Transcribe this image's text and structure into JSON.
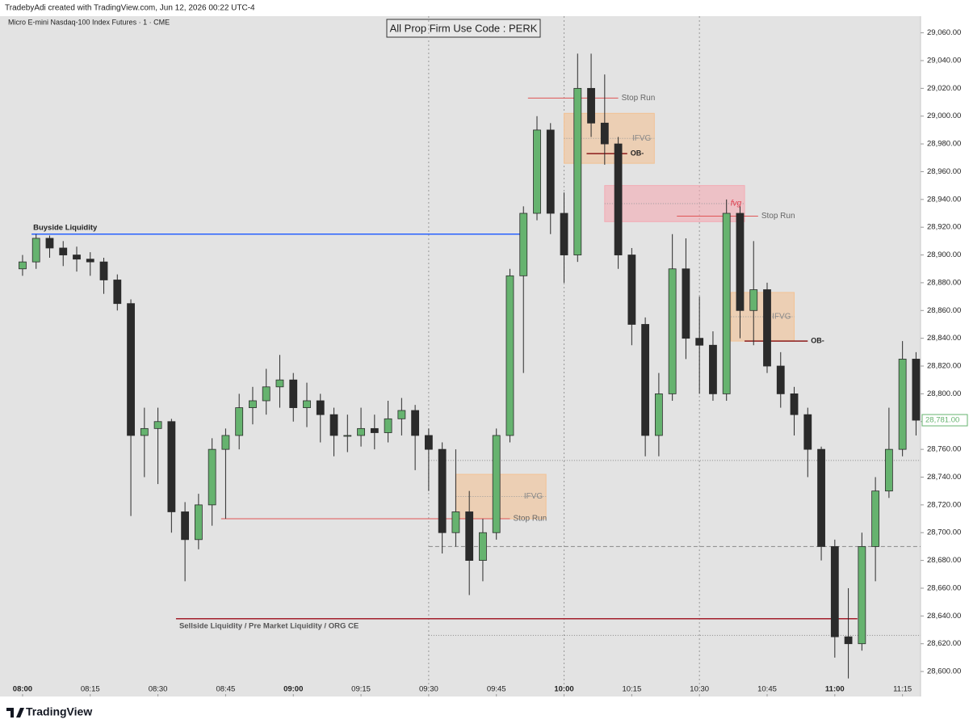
{
  "header": {
    "credit": "TradebyAdi created with TradingView.com, Jun 12, 2026 00:22 UTC-4",
    "symbol": "Micro E-mini Nasdaq-100 Index Futures · 1 · CME",
    "logo": "TradingView"
  },
  "chart_data": {
    "type": "candlestick",
    "title": "All Prop Firm Use Code : PERK",
    "x": [
      "08:00",
      "08:03",
      "08:06",
      "08:09",
      "08:12",
      "08:15",
      "08:18",
      "08:21",
      "08:24",
      "08:27",
      "08:30",
      "08:33",
      "08:36",
      "08:39",
      "08:42",
      "08:45",
      "08:48",
      "08:51",
      "08:54",
      "08:57",
      "09:00",
      "09:03",
      "09:06",
      "09:09",
      "09:12",
      "09:15",
      "09:18",
      "09:21",
      "09:24",
      "09:27",
      "09:30",
      "09:33",
      "09:36",
      "09:39",
      "09:42",
      "09:45",
      "09:48",
      "09:51",
      "09:54",
      "09:57",
      "10:00",
      "10:03",
      "10:06",
      "10:09",
      "10:12",
      "10:15",
      "10:18",
      "10:21",
      "10:24",
      "10:27",
      "10:30",
      "10:33",
      "10:36",
      "10:39",
      "10:42",
      "10:45",
      "10:48",
      "10:51",
      "10:54",
      "10:57",
      "11:00",
      "11:03",
      "11:06",
      "11:09",
      "11:12",
      "11:15",
      "11:18"
    ],
    "open": [
      28890,
      28895,
      28912,
      28905,
      28900,
      28897,
      28895,
      28882,
      28865,
      28770,
      28775,
      28780,
      28715,
      28695,
      28720,
      28760,
      28770,
      28790,
      28795,
      28805,
      28810,
      28790,
      28795,
      28785,
      28770,
      28770,
      28775,
      28772,
      28782,
      28788,
      28770,
      28760,
      28700,
      28715,
      28680,
      28700,
      28770,
      28885,
      28930,
      28990,
      28930,
      28900,
      29020,
      28995,
      28980,
      28900,
      28850,
      28770,
      28800,
      28890,
      28840,
      28835,
      28800,
      28930,
      28860,
      28875,
      28820,
      28800,
      28785,
      28760,
      28690,
      28625,
      28620,
      28690,
      28730,
      28760,
      28825
    ],
    "high": [
      28900,
      28915,
      28914,
      28910,
      28906,
      28902,
      28898,
      28886,
      28868,
      28790,
      28790,
      28782,
      28722,
      28728,
      28768,
      28775,
      28800,
      28805,
      28818,
      28828,
      28815,
      28808,
      28800,
      28790,
      28785,
      28790,
      28785,
      28795,
      28797,
      28792,
      28775,
      28765,
      28760,
      28730,
      28710,
      28775,
      28890,
      28935,
      29000,
      28995,
      28945,
      29045,
      29045,
      29030,
      28985,
      28905,
      28855,
      28815,
      28915,
      28912,
      28870,
      28845,
      28940,
      28935,
      28910,
      28880,
      28830,
      28805,
      28790,
      28762,
      28695,
      28660,
      28700,
      28740,
      28790,
      28838,
      28830
    ],
    "low": [
      28885,
      28890,
      28898,
      28892,
      28888,
      28885,
      28872,
      28860,
      28712,
      28740,
      28735,
      28700,
      28665,
      28688,
      28705,
      28710,
      28760,
      28778,
      28785,
      28790,
      28780,
      28776,
      28765,
      28755,
      28758,
      28762,
      28760,
      28765,
      28770,
      28745,
      28730,
      28685,
      28690,
      28655,
      28665,
      28695,
      28765,
      28815,
      28925,
      28915,
      28880,
      28895,
      28985,
      28965,
      28890,
      28835,
      28755,
      28755,
      28795,
      28825,
      28800,
      28795,
      28795,
      28840,
      28835,
      28815,
      28790,
      28770,
      28740,
      28680,
      28610,
      28595,
      28615,
      28665,
      28725,
      28755,
      28770
    ],
    "close": [
      28895,
      28912,
      28905,
      28900,
      28897,
      28895,
      28882,
      28865,
      28770,
      28775,
      28780,
      28715,
      28695,
      28720,
      28760,
      28770,
      28790,
      28795,
      28805,
      28810,
      28790,
      28795,
      28785,
      28770,
      28770,
      28775,
      28772,
      28782,
      28788,
      28770,
      28760,
      28700,
      28715,
      28680,
      28700,
      28770,
      28885,
      28930,
      28990,
      28930,
      28900,
      29020,
      28995,
      28980,
      28900,
      28850,
      28770,
      28800,
      28890,
      28840,
      28835,
      28800,
      28930,
      28860,
      28875,
      28820,
      28800,
      28785,
      28760,
      28690,
      28625,
      28620,
      28690,
      28730,
      28760,
      28825,
      28781
    ],
    "up_color": "#66b36f",
    "down_color": "#2b2b2b",
    "xlim": [
      "07:55",
      "11:19"
    ],
    "xticks": [
      "08:00",
      "08:15",
      "08:30",
      "08:45",
      "09:00",
      "09:15",
      "09:30",
      "09:45",
      "10:00",
      "10:15",
      "10:30",
      "10:45",
      "11:00",
      "11:15"
    ],
    "ylim": [
      28582,
      29072
    ],
    "yticks": [
      {
        "value": 28600,
        "label": "28,600.00"
      },
      {
        "value": 28620,
        "label": "28,620.00"
      },
      {
        "value": 28640,
        "label": "28,640.00"
      },
      {
        "value": 28660,
        "label": "28,660.00"
      },
      {
        "value": 28680,
        "label": "28,680.00"
      },
      {
        "value": 28700,
        "label": "28,700.00"
      },
      {
        "value": 28720,
        "label": "28,720.00"
      },
      {
        "value": 28740,
        "label": "28,740.00"
      },
      {
        "value": 28760,
        "label": "28,760.00"
      },
      {
        "value": 28780,
        "label": "28,780.00"
      },
      {
        "value": 28800,
        "label": "28,800.00"
      },
      {
        "value": 28820,
        "label": "28,820.00"
      },
      {
        "value": 28840,
        "label": "28,840.00"
      },
      {
        "value": 28860,
        "label": "28,860.00"
      },
      {
        "value": 28880,
        "label": "28,880.00"
      },
      {
        "value": 28900,
        "label": "28,900.00"
      },
      {
        "value": 28920,
        "label": "28,920.00"
      },
      {
        "value": 28940,
        "label": "28,940.00"
      },
      {
        "value": 28960,
        "label": "28,960.00"
      },
      {
        "value": 28980,
        "label": "28,980.00"
      },
      {
        "value": 29000,
        "label": "29,000.00"
      },
      {
        "value": 29020,
        "label": "29,020.00"
      },
      {
        "value": 29040,
        "label": "29,040.00"
      },
      {
        "value": 29060,
        "label": "29,060.00"
      }
    ],
    "last_price": {
      "value": 28781,
      "label": "28,781.00"
    },
    "levels": [
      28752,
      28690,
      28626
    ],
    "vlines": [
      "09:30",
      "10:00",
      "10:30"
    ],
    "lines": [
      {
        "label": "Buyside Liquidity",
        "level": 28915,
        "start": "08:02",
        "end": "09:51",
        "color": "#2962ff"
      },
      {
        "label": "Sellside Liquidity / Pre Market Liquidity / ORG CE",
        "level": 28638,
        "start": "08:34",
        "end": "11:05",
        "color": "#a31f2b"
      },
      {
        "label": "Stop Run",
        "level": 28710,
        "start": "08:44",
        "end": "09:48",
        "color": "#e05555"
      },
      {
        "label": "Stop Run",
        "level": 29013,
        "start": "09:52",
        "end": "10:12",
        "color": "#e05555"
      },
      {
        "label": "Stop Run",
        "level": 28928,
        "start": "10:25",
        "end": "10:43",
        "color": "#e05555"
      },
      {
        "label": "OB-",
        "level": 28973,
        "start": "10:05",
        "end": "10:14",
        "color": "#8b1a1a"
      },
      {
        "label": "OB-",
        "level": 28838,
        "start": "10:40",
        "end": "10:54",
        "color": "#8b1a1a"
      }
    ],
    "zones": [
      {
        "label": "IFVG",
        "top": 28742,
        "bottom": 28710,
        "start": "09:36",
        "end": "09:56",
        "color": "#f2c294"
      },
      {
        "label": "IFVG",
        "top": 29002,
        "bottom": 28966,
        "start": "10:00",
        "end": "10:20",
        "color": "#f2c294"
      },
      {
        "label": "IFVG",
        "top": 28873,
        "bottom": 28838,
        "start": "10:37",
        "end": "10:51",
        "color": "#f2c294"
      },
      {
        "label": "fvg",
        "top": 28950,
        "bottom": 28924,
        "start": "10:09",
        "end": "10:40",
        "color": "#f3aab3"
      }
    ]
  }
}
